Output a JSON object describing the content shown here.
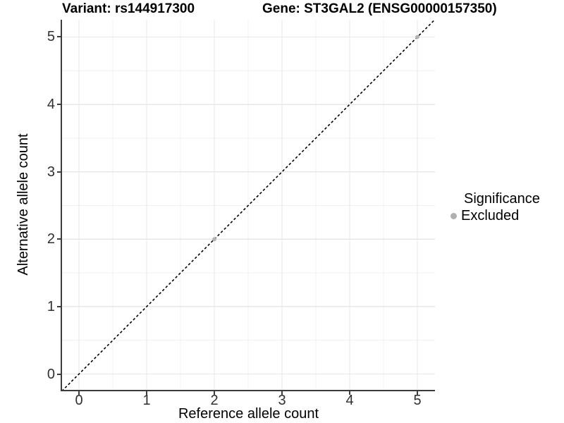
{
  "header": {
    "variant_title": "Variant: rs144917300",
    "gene_title": "Gene: ST3GAL2 (ENSG00000157350)"
  },
  "chart_data": {
    "type": "scatter",
    "xlabel": "Reference allele count",
    "ylabel": "Alternative allele count",
    "x_ticks": [
      0,
      1,
      2,
      3,
      4,
      5
    ],
    "y_ticks": [
      0,
      1,
      2,
      3,
      4,
      5
    ],
    "xlim": [
      -0.25,
      5.26
    ],
    "ylim": [
      -0.235,
      5.256
    ],
    "grid": {
      "major": true,
      "minor": true
    },
    "identity_line": {
      "slope": 1,
      "intercept": 0,
      "style": "dashed",
      "color": "#000000"
    },
    "series": [
      {
        "name": "Excluded",
        "color": "#b3b3b3",
        "points": [
          {
            "x": 2,
            "y": 2
          },
          {
            "x": 5,
            "y": 5
          }
        ]
      }
    ],
    "legend": {
      "title": "Significance",
      "position": "right",
      "items": [
        {
          "label": "Excluded",
          "color": "#b0b0b0"
        }
      ]
    }
  },
  "style": {
    "grid_major_color": "#e7e7e7",
    "grid_minor_color": "#f2f2f2",
    "axis_line_color": "#3c3c3c",
    "tick_label_color": "#303030"
  }
}
